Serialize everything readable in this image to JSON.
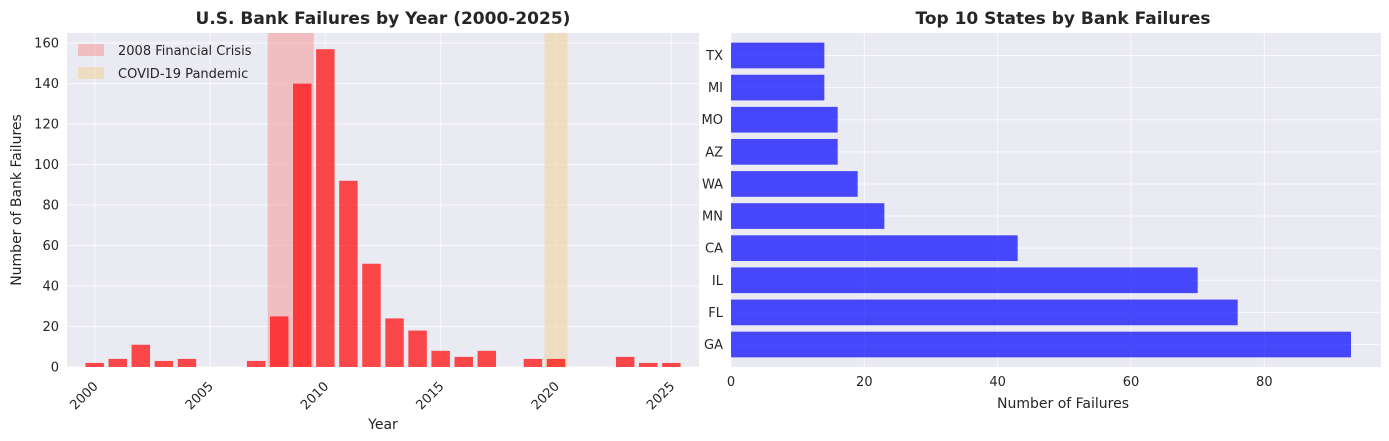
{
  "chart_data": [
    {
      "type": "bar",
      "title": "U.S. Bank Failures by Year (2000-2025)",
      "xlabel": "Year",
      "ylabel": "Number of Bank Failures",
      "x": [
        2000,
        2001,
        2002,
        2003,
        2004,
        2005,
        2006,
        2007,
        2008,
        2009,
        2010,
        2011,
        2012,
        2013,
        2014,
        2015,
        2016,
        2017,
        2018,
        2019,
        2020,
        2021,
        2022,
        2023,
        2024,
        2025
      ],
      "values": [
        2,
        4,
        11,
        3,
        4,
        0,
        0,
        3,
        25,
        140,
        157,
        92,
        51,
        24,
        18,
        8,
        5,
        8,
        0,
        4,
        4,
        0,
        0,
        5,
        2,
        2
      ],
      "xlim": [
        1998.8,
        2026.2
      ],
      "ylim": [
        0,
        165
      ],
      "xticks": [
        "2000",
        "2005",
        "2010",
        "2015",
        "2020",
        "2025"
      ],
      "yticks": [
        "0",
        "20",
        "40",
        "60",
        "80",
        "100",
        "120",
        "140",
        "160"
      ],
      "bar_color": "#ff0000",
      "grid": true,
      "legend_position": "top-left",
      "shaded_regions": [
        {
          "name": "2008 Financial Crisis",
          "x_start": 2007.5,
          "x_end": 2009.5,
          "color": "#f4a0a0"
        },
        {
          "name": "COVID-19 Pandemic",
          "x_start": 2019.5,
          "x_end": 2020.5,
          "color": "#f2d3a0"
        }
      ]
    },
    {
      "type": "bar",
      "orientation": "horizontal",
      "title": "Top 10 States by Bank Failures",
      "xlabel": "Number of Failures",
      "ylabel": "",
      "categories": [
        "GA",
        "FL",
        "IL",
        "CA",
        "MN",
        "WA",
        "AZ",
        "MO",
        "MI",
        "TX"
      ],
      "values": [
        93,
        76,
        70,
        43,
        23,
        19,
        16,
        16,
        14,
        14
      ],
      "xlim": [
        0,
        97.5
      ],
      "xticks": [
        "0",
        "20",
        "40",
        "60",
        "80"
      ],
      "bar_color": "#0000ff",
      "grid": true
    }
  ]
}
